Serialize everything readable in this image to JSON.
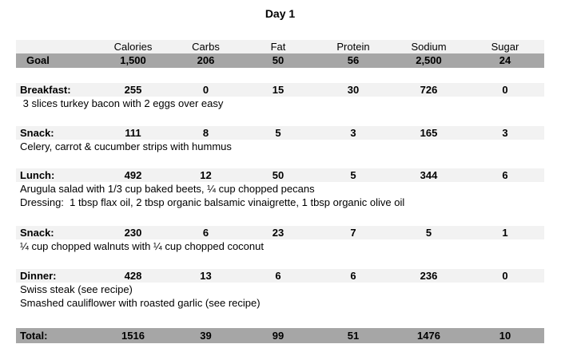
{
  "title": "Day 1",
  "columns": [
    "Calories",
    "Carbs",
    "Fat",
    "Protein",
    "Sodium",
    "Sugar"
  ],
  "goal": {
    "label": "Goal",
    "values": [
      "1,500",
      "206",
      "50",
      "56",
      "2,500",
      "24"
    ]
  },
  "sections": [
    {
      "label": "Breakfast:",
      "values": [
        "255",
        "0",
        "15",
        "30",
        "726",
        "0"
      ],
      "descriptions": [
        " 3 slices turkey bacon with 2 eggs over easy"
      ]
    },
    {
      "label": "Snack:",
      "values": [
        "111",
        "8",
        "5",
        "3",
        "165",
        "3"
      ],
      "descriptions": [
        "Celery, carrot & cucumber strips with hummus"
      ]
    },
    {
      "label": "Lunch:",
      "values": [
        "492",
        "12",
        "50",
        "5",
        "344",
        "6"
      ],
      "descriptions": [
        "Arugula salad with 1/3 cup baked beets, ¼ cup chopped pecans",
        "Dressing:  1 tbsp flax oil, 2 tbsp organic balsamic vinaigrette, 1 tbsp organic olive oil"
      ]
    },
    {
      "label": "Snack:",
      "values": [
        "230",
        "6",
        "23",
        "7",
        "5",
        "1"
      ],
      "descriptions": [
        "¼ cup chopped walnuts with ¼ cup chopped coconut"
      ]
    },
    {
      "label": "Dinner:",
      "values": [
        "428",
        "13",
        "6",
        "6",
        "236",
        "0"
      ],
      "descriptions": [
        "Swiss steak (see recipe)",
        "Smashed cauliflower with roasted garlic (see recipe)"
      ]
    }
  ],
  "total": {
    "label": "Total:",
    "values": [
      "1516",
      "39",
      "99",
      "51",
      "1476",
      "10"
    ]
  },
  "colors": {
    "band_light": "#f2f2f2",
    "band_dark": "#a6a6a6",
    "text": "#000000"
  }
}
